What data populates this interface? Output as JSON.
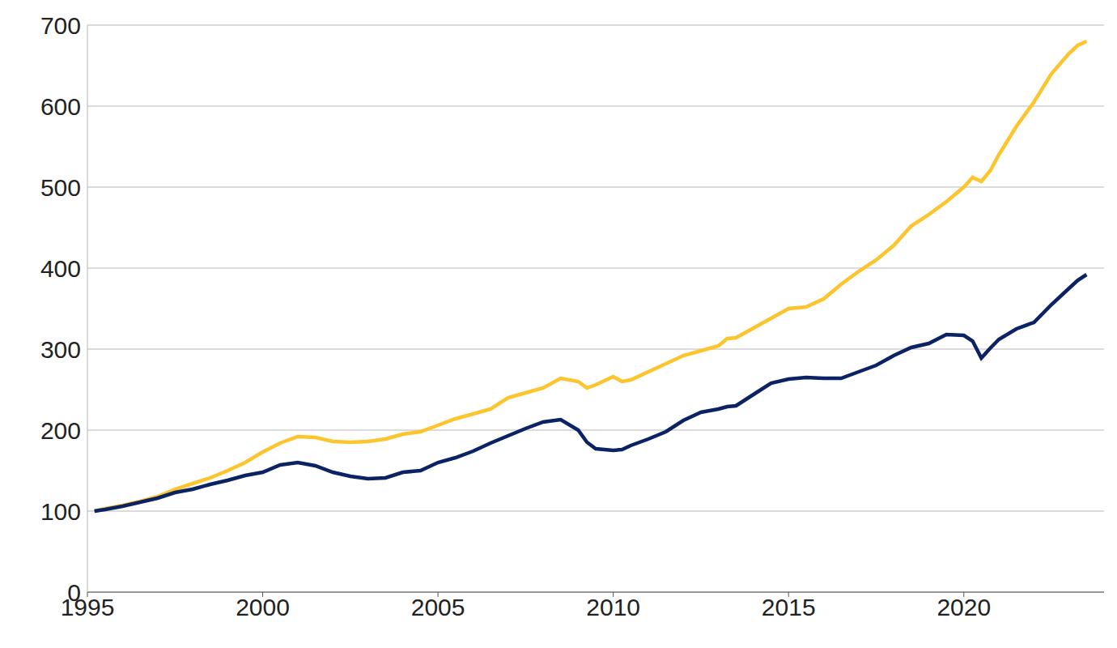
{
  "chart_data": {
    "type": "line",
    "x": [
      1995.2,
      1995.5,
      1996,
      1996.5,
      1997,
      1997.5,
      1998,
      1998.5,
      1999,
      1999.5,
      2000,
      2000.5,
      2001,
      2001.5,
      2002,
      2002.5,
      2003,
      2003.5,
      2004,
      2004.5,
      2005,
      2005.5,
      2006,
      2006.5,
      2007,
      2007.5,
      2008,
      2008.5,
      2009,
      2009.25,
      2009.5,
      2010,
      2010.25,
      2010.5,
      2011,
      2011.5,
      2012,
      2012.5,
      2013,
      2013.25,
      2013.5,
      2014,
      2014.5,
      2015,
      2015.5,
      2016,
      2016.5,
      2017,
      2017.5,
      2018,
      2018.5,
      2019,
      2019.5,
      2020,
      2020.25,
      2020.5,
      2020.75,
      2021,
      2021.5,
      2022,
      2022.5,
      2023,
      2023.25,
      2023.5
    ],
    "series": [
      {
        "color": "#fcc42d",
        "values": [
          100,
          103,
          107,
          112,
          118,
          127,
          134,
          141,
          150,
          160,
          173,
          184,
          192,
          191,
          186,
          185,
          186,
          189,
          195,
          198,
          206,
          214,
          220,
          226,
          240,
          246,
          252,
          264,
          260,
          252,
          256,
          266,
          260,
          262,
          272,
          282,
          292,
          298,
          304,
          313,
          314,
          326,
          338,
          350,
          352,
          362,
          380,
          396,
          410,
          428,
          452,
          466,
          482,
          500,
          512,
          507,
          520,
          540,
          575,
          605,
          640,
          665,
          675,
          680
        ]
      },
      {
        "color": "#0b2265",
        "values": [
          100,
          102,
          106,
          111,
          116,
          123,
          127,
          133,
          138,
          144,
          148,
          157,
          160,
          156,
          148,
          143,
          140,
          141,
          148,
          150,
          160,
          166,
          174,
          184,
          193,
          202,
          210,
          213,
          200,
          185,
          177,
          175,
          176,
          181,
          189,
          198,
          212,
          222,
          226,
          229,
          230,
          244,
          258,
          263,
          265,
          264,
          264,
          272,
          280,
          292,
          302,
          307,
          318,
          317,
          310,
          289,
          301,
          312,
          325,
          333,
          355,
          375,
          385,
          392
        ]
      }
    ],
    "xlim": [
      1995,
      2024
    ],
    "xticks": [
      1995,
      2000,
      2005,
      2010,
      2015,
      2020
    ],
    "ylim": [
      0,
      700
    ],
    "yticks": [
      0,
      100,
      200,
      300,
      400,
      500,
      600,
      700
    ],
    "grid": true
  }
}
